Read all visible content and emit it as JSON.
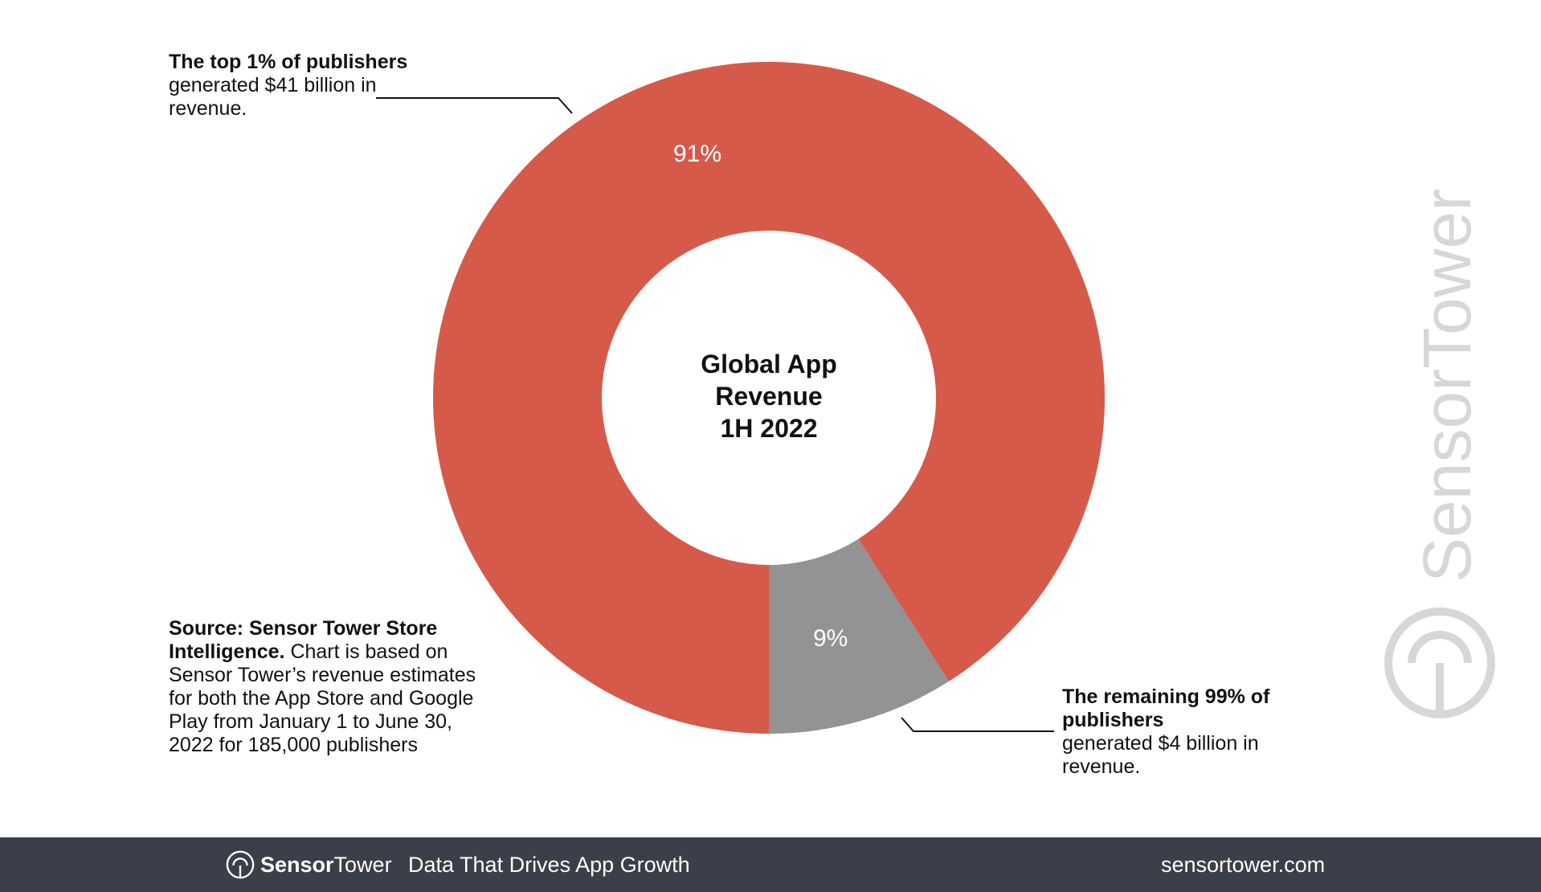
{
  "chart_data": {
    "type": "pie",
    "style": "donut",
    "title_lines": [
      "Global App",
      "Revenue",
      "1H 2022"
    ],
    "slices": [
      {
        "label": "Top 1% of publishers",
        "value": 91,
        "display": "91%",
        "color": "#d65a4a"
      },
      {
        "label": "Remaining 99% of publishers",
        "value": 9,
        "display": "9%",
        "color": "#939393"
      }
    ],
    "annotations": {
      "top": {
        "bold": "The top 1% of publishers",
        "text": "generated $41 billion in revenue."
      },
      "bottom": {
        "bold": "The remaining 99% of publishers",
        "text": "generated $4 billion in revenue."
      }
    }
  },
  "source": {
    "bold": "Source: Sensor Tower Store Intelligence.",
    "text": "Chart is based on Sensor Tower’s revenue estimates for both the App Store and Google Play from January 1 to June 30, 2022 for 185,000 publishers"
  },
  "watermark": {
    "text": "SensorTower",
    "color": "#d7d7d7"
  },
  "footer": {
    "brand_sensor": "Sensor",
    "brand_tower": "Tower",
    "tagline": "Data That Drives App Growth",
    "site": "sensortower.com",
    "bg_color": "#3a3f4a"
  }
}
